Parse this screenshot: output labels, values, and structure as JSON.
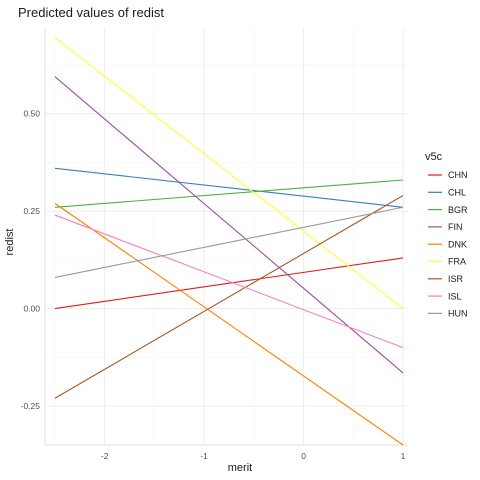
{
  "chart_data": {
    "type": "line",
    "title": "Predicted values of redist",
    "xlabel": "merit",
    "ylabel": "redist",
    "xlim": [
      -2.6,
      1.05
    ],
    "ylim": [
      -0.35,
      0.72
    ],
    "x_ticks": [
      -2,
      -1,
      0,
      1
    ],
    "x_tick_labels": [
      "-2",
      "-1",
      "0",
      "1"
    ],
    "y_ticks": [
      -0.25,
      0,
      0.25,
      0.5
    ],
    "y_tick_labels": [
      "-0.25",
      "0.00",
      "0.25",
      "0.50"
    ],
    "grid": true,
    "legend_title": "v5c",
    "legend_position": "right",
    "series": [
      {
        "name": "CHN",
        "color": "#e41a1c",
        "x": [
          -2.5,
          1
        ],
        "y": [
          0.0,
          0.13
        ]
      },
      {
        "name": "CHL",
        "color": "#377eb8",
        "x": [
          -2.5,
          1
        ],
        "y": [
          0.36,
          0.26
        ]
      },
      {
        "name": "BGR",
        "color": "#4daf4a",
        "x": [
          -2.5,
          1
        ],
        "y": [
          0.26,
          0.33
        ]
      },
      {
        "name": "FIN",
        "color": "#984ea3",
        "x": [
          -2.5,
          1
        ],
        "y": [
          0.595,
          -0.165
        ]
      },
      {
        "name": "DNK",
        "color": "#ff7f00",
        "x": [
          -2.5,
          1
        ],
        "y": [
          0.27,
          -0.35
        ]
      },
      {
        "name": "FRA",
        "color": "#ffff33",
        "x": [
          -2.5,
          1
        ],
        "y": [
          0.695,
          0.0
        ]
      },
      {
        "name": "ISR",
        "color": "#a65628",
        "x": [
          -2.5,
          1
        ],
        "y": [
          -0.23,
          0.29
        ]
      },
      {
        "name": "ISL",
        "color": "#f781bf",
        "x": [
          -2.5,
          1
        ],
        "y": [
          0.24,
          -0.1
        ]
      },
      {
        "name": "HUN",
        "color": "#999999",
        "x": [
          -2.5,
          1
        ],
        "y": [
          0.08,
          0.26
        ]
      }
    ]
  }
}
